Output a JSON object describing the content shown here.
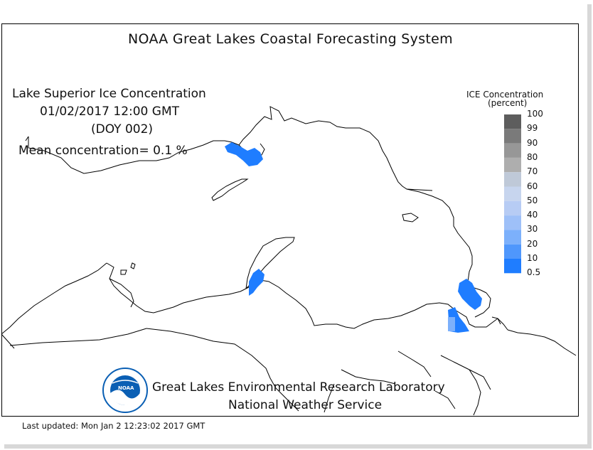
{
  "title": "NOAA Great Lakes Coastal Forecasting System",
  "info": {
    "lake": "Lake Superior Ice Concentration",
    "datetime": "01/02/2017 12:00 GMT",
    "doy": "(DOY 002)",
    "mean": "Mean concentration= 0.1 %"
  },
  "legend": {
    "title": "ICE Concentration",
    "unit": "(percent)",
    "levels": [
      "100",
      "99",
      "90",
      "80",
      "70",
      "60",
      "50",
      "40",
      "30",
      "20",
      "10",
      "0.5"
    ],
    "colors": [
      "#3f3f3f",
      "#5d5d5d",
      "#7a7a7a",
      "#979797",
      "#aeaeae",
      "#bfc9d8",
      "#c7d5ee",
      "#b7ccf4",
      "#9ec0f8",
      "#7cb0fb",
      "#4f97fc",
      "#1f7dff"
    ]
  },
  "footer": {
    "lab": "Great Lakes Environmental Research Laboratory",
    "service": "National Weather Service"
  },
  "logo_text": "NOAA",
  "last_updated": "Last updated: Mon Jan  2 12:23:02 2017 GMT",
  "colors": {
    "ice": "#1f7dff",
    "land_line": "#000000",
    "frame": "#000000",
    "logo_blue": "#0a5fb4"
  }
}
